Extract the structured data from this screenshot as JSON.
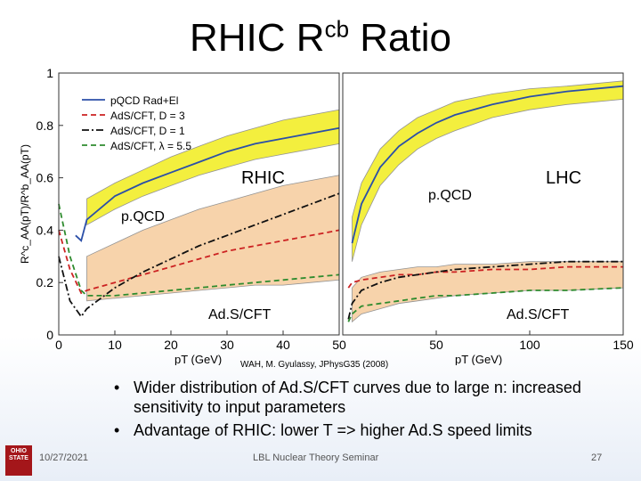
{
  "slide": {
    "title_main": "RHIC R",
    "title_sup": "cb",
    "title_end": " Ratio",
    "citation": "WAH, M. Gyulassy, JPhysG35 (2008)",
    "bullets": [
      "Wider distribution of Ad.S/CFT curves due to large n: increased sensitivity to input parameters",
      "Advantage of RHIC: lower T => higher Ad.S speed limits"
    ],
    "bullet_glyph": "•",
    "footer_date": "10/27/2021",
    "footer_center": "LBL Nuclear Theory Seminar",
    "footer_page": "27",
    "logo_text": "OHIO STATE"
  },
  "chart_data": [
    {
      "type": "line",
      "panel": "RHIC",
      "panel_label": "RHIC",
      "xlabel": "pT (GeV)",
      "ylabel": "R^c_AA(pT)/R^b_AA(pT)",
      "xlim": [
        0,
        50
      ],
      "ylim": [
        0,
        1
      ],
      "x_ticks": [
        "0",
        "10",
        "20",
        "30",
        "40",
        "50"
      ],
      "y_ticks": [
        "0",
        "0.2",
        "0.4",
        "0.6",
        "0.8",
        "1"
      ],
      "annotations": [
        "p.QCD",
        "Ad.S/CFT"
      ],
      "legend": {
        "placement": "top-left",
        "entries": [
          "pQCD Rad+El",
          "AdS/CFT, D = 3",
          "AdS/CFT, D = 1",
          "AdS/CFT, λ = 5.5"
        ]
      },
      "bands": [
        {
          "name": "pQCD",
          "color": "#f2ee2a",
          "x": [
            5,
            10,
            15,
            20,
            25,
            30,
            35,
            40,
            45,
            50
          ],
          "lower": [
            0.42,
            0.48,
            0.53,
            0.57,
            0.61,
            0.64,
            0.67,
            0.69,
            0.71,
            0.73
          ],
          "upper": [
            0.52,
            0.58,
            0.63,
            0.68,
            0.72,
            0.76,
            0.79,
            0.82,
            0.84,
            0.86
          ]
        },
        {
          "name": "AdS/CFT",
          "color": "#f7cfa3",
          "x": [
            5,
            10,
            15,
            20,
            25,
            30,
            35,
            40,
            45,
            50
          ],
          "lower": [
            0.13,
            0.14,
            0.15,
            0.16,
            0.17,
            0.18,
            0.19,
            0.19,
            0.2,
            0.21
          ],
          "upper": [
            0.3,
            0.35,
            0.4,
            0.44,
            0.48,
            0.51,
            0.54,
            0.57,
            0.59,
            0.61
          ]
        }
      ],
      "series": [
        {
          "name": "pQCD Rad+El",
          "color": "#2b4fa8",
          "dash": "solid",
          "x": [
            3,
            4,
            5,
            10,
            15,
            20,
            25,
            30,
            35,
            40,
            45,
            50
          ],
          "y": [
            0.38,
            0.36,
            0.44,
            0.53,
            0.58,
            0.62,
            0.66,
            0.7,
            0.73,
            0.75,
            0.77,
            0.79
          ]
        },
        {
          "name": "AdS/CFT, D = 3",
          "color": "#cc2222",
          "dash": "dashed",
          "x": [
            0,
            2,
            4,
            5,
            10,
            15,
            20,
            25,
            30,
            35,
            40,
            45,
            50
          ],
          "y": [
            0.4,
            0.25,
            0.16,
            0.17,
            0.2,
            0.23,
            0.26,
            0.29,
            0.32,
            0.34,
            0.36,
            0.38,
            0.4
          ]
        },
        {
          "name": "AdS/CFT, D = 1",
          "color": "#111111",
          "dash": "dashdot",
          "x": [
            0,
            2,
            4,
            5,
            10,
            15,
            20,
            25,
            30,
            35,
            40,
            45,
            50
          ],
          "y": [
            0.3,
            0.13,
            0.07,
            0.1,
            0.18,
            0.24,
            0.29,
            0.34,
            0.38,
            0.42,
            0.46,
            0.5,
            0.54
          ]
        },
        {
          "name": "AdS/CFT, λ = 5.5",
          "color": "#2e8b2e",
          "dash": "dashed",
          "x": [
            0,
            2,
            4,
            5,
            10,
            15,
            20,
            25,
            30,
            35,
            40,
            45,
            50
          ],
          "y": [
            0.5,
            0.3,
            0.17,
            0.15,
            0.15,
            0.16,
            0.17,
            0.18,
            0.19,
            0.2,
            0.21,
            0.22,
            0.23
          ]
        }
      ]
    },
    {
      "type": "line",
      "panel": "LHC",
      "panel_label": "LHC",
      "xlabel": "pT (GeV)",
      "xlim": [
        0,
        150
      ],
      "ylim": [
        0,
        1
      ],
      "x_ticks": [
        "50",
        "100",
        "150"
      ],
      "annotations": [
        "p.QCD",
        "Ad.S/CFT"
      ],
      "bands": [
        {
          "name": "pQCD",
          "color": "#f2ee2a",
          "x": [
            5,
            10,
            20,
            30,
            40,
            50,
            60,
            80,
            100,
            120,
            150
          ],
          "lower": [
            0.28,
            0.42,
            0.57,
            0.65,
            0.71,
            0.75,
            0.78,
            0.83,
            0.86,
            0.88,
            0.9
          ],
          "upper": [
            0.45,
            0.58,
            0.71,
            0.78,
            0.83,
            0.86,
            0.89,
            0.92,
            0.94,
            0.95,
            0.97
          ]
        },
        {
          "name": "AdS/CFT",
          "color": "#f7cfa3",
          "x": [
            5,
            10,
            20,
            30,
            40,
            50,
            60,
            80,
            100,
            120,
            150
          ],
          "lower": [
            0.05,
            0.08,
            0.1,
            0.12,
            0.13,
            0.14,
            0.15,
            0.16,
            0.17,
            0.17,
            0.18
          ],
          "upper": [
            0.18,
            0.22,
            0.24,
            0.25,
            0.26,
            0.26,
            0.27,
            0.27,
            0.28,
            0.28,
            0.28
          ]
        }
      ],
      "series": [
        {
          "name": "pQCD Rad+El",
          "color": "#2b4fa8",
          "dash": "solid",
          "x": [
            5,
            10,
            20,
            30,
            40,
            50,
            60,
            80,
            100,
            120,
            150
          ],
          "y": [
            0.35,
            0.5,
            0.64,
            0.72,
            0.77,
            0.81,
            0.84,
            0.88,
            0.91,
            0.93,
            0.95
          ]
        },
        {
          "name": "AdS/CFT, D = 3",
          "color": "#cc2222",
          "dash": "dashed",
          "x": [
            3,
            5,
            10,
            20,
            30,
            40,
            50,
            60,
            80,
            100,
            120,
            150
          ],
          "y": [
            0.18,
            0.2,
            0.21,
            0.22,
            0.23,
            0.23,
            0.24,
            0.24,
            0.25,
            0.25,
            0.26,
            0.26
          ]
        },
        {
          "name": "AdS/CFT, D = 1",
          "color": "#111111",
          "dash": "dashdot",
          "x": [
            3,
            5,
            10,
            20,
            30,
            40,
            50,
            60,
            80,
            100,
            120,
            150
          ],
          "y": [
            0.06,
            0.12,
            0.17,
            0.2,
            0.22,
            0.23,
            0.24,
            0.25,
            0.26,
            0.27,
            0.28,
            0.28
          ]
        },
        {
          "name": "AdS/CFT, λ = 5.5",
          "color": "#2e8b2e",
          "dash": "dashed",
          "x": [
            3,
            5,
            10,
            20,
            30,
            40,
            50,
            60,
            80,
            100,
            120,
            150
          ],
          "y": [
            0.05,
            0.08,
            0.11,
            0.12,
            0.13,
            0.14,
            0.15,
            0.15,
            0.16,
            0.17,
            0.17,
            0.18
          ]
        }
      ]
    }
  ]
}
